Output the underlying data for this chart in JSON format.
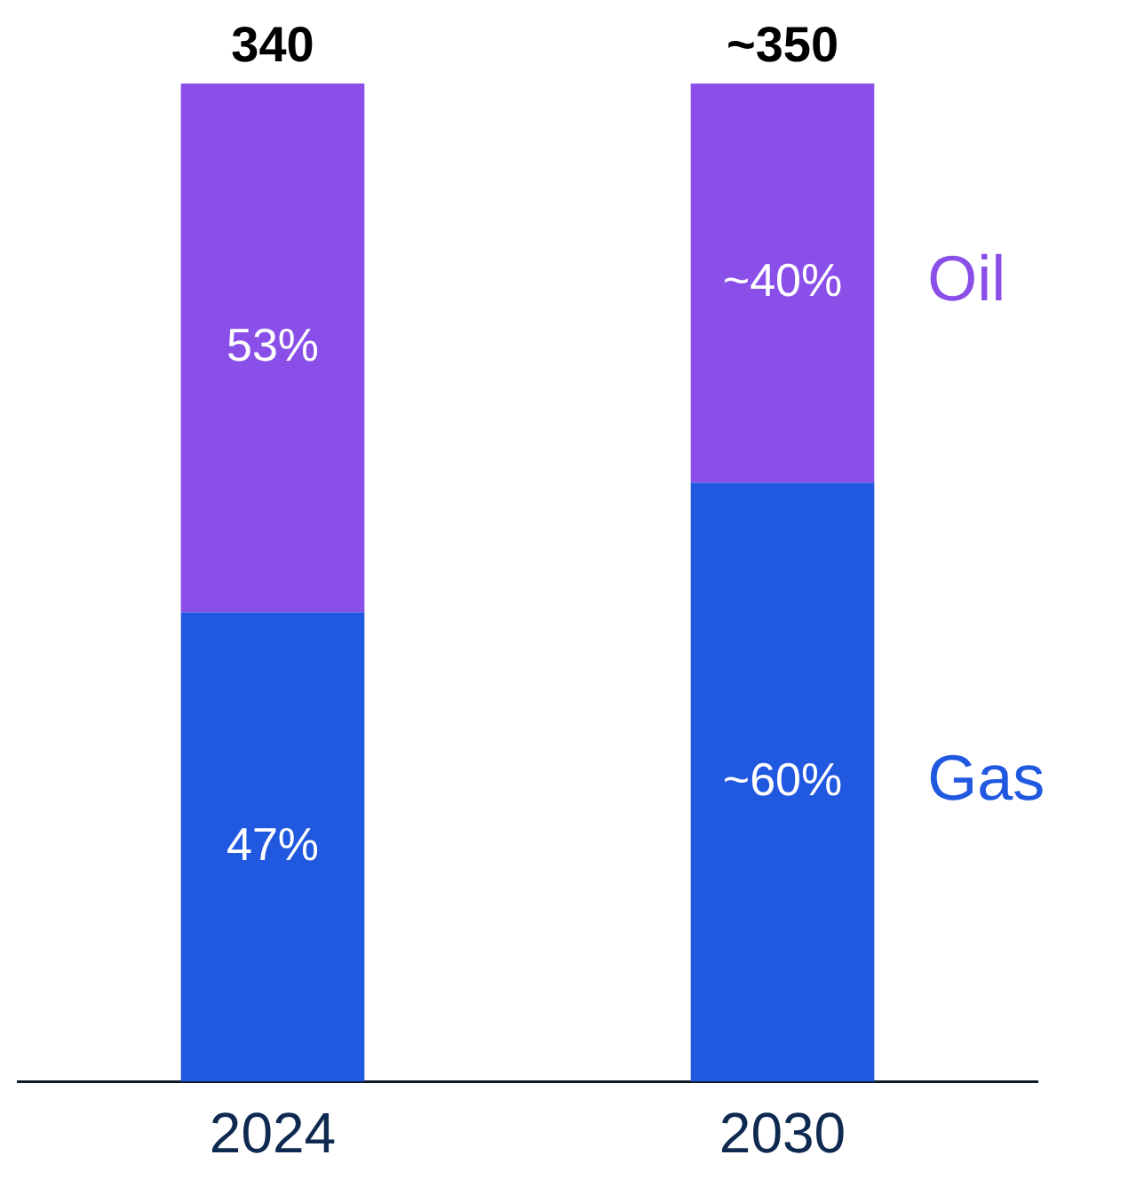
{
  "chart_data": {
    "type": "bar",
    "stacked": true,
    "categories": [
      "2024",
      "2030"
    ],
    "series": [
      {
        "name": "Gas",
        "color": "#2058e0",
        "values": [
          47,
          60
        ],
        "value_labels": [
          "47%",
          "~60%"
        ]
      },
      {
        "name": "Oil",
        "color": "#8a4fe8",
        "values": [
          53,
          40
        ],
        "value_labels": [
          "53%",
          "~40%"
        ]
      }
    ],
    "annotations": [
      "340",
      "~350"
    ],
    "legend": false,
    "grid": false
  }
}
